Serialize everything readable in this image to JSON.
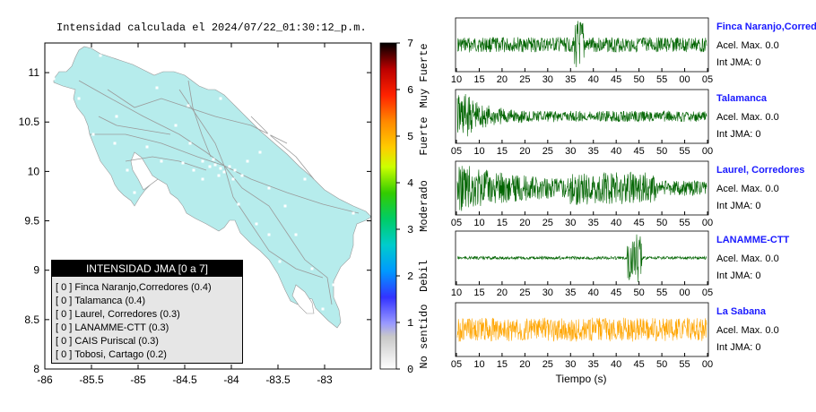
{
  "map": {
    "title": "Intensidad calculada el 2024/07/22_01:30:12_p.m.",
    "x_ticks": [
      "-86",
      "-85.5",
      "-85",
      "-84.5",
      "-84",
      "-83.5",
      "-83"
    ],
    "y_ticks": [
      "11",
      "10.5",
      "10",
      "9.5",
      "9",
      "8.5",
      "8"
    ],
    "xlim": [
      -86,
      -82.5
    ],
    "ylim": [
      8,
      11.3
    ],
    "land_color": "#b6ecec"
  },
  "legend": {
    "title": "INTENSIDAD JMA [0 a 7]",
    "items": [
      "[ 0 ] Finca Naranjo,Corredores (0.4)",
      "[ 0 ] Talamanca (0.4)",
      "[ 0 ] Laurel, Corredores (0.3)",
      "[ 0 ] LANAMME-CTT (0.3)",
      "[ 0 ] CAIS Puriscal (0.3)",
      "[ 0 ] Tobosi, Cartago (0.2)"
    ]
  },
  "colorbar": {
    "ticks": [
      "0",
      "1",
      "2",
      "3",
      "4",
      "5",
      "6",
      "7"
    ],
    "category_labels": [
      "No sentido",
      "Debil",
      "Moderado",
      "Fuerte",
      "Muy Fuerte"
    ]
  },
  "chart_data": [
    {
      "type": "map",
      "title": "Intensidad calculada el 2024/07/22_01:30:12_p.m.",
      "x_range": [
        -86,
        -82.5
      ],
      "y_range": [
        8,
        11.3
      ],
      "stations": [
        {
          "name": "Finca Naranjo,Corredores",
          "jma": 0,
          "value": 0.4
        },
        {
          "name": "Talamanca",
          "jma": 0,
          "value": 0.4
        },
        {
          "name": "Laurel, Corredores",
          "jma": 0,
          "value": 0.3
        },
        {
          "name": "LANAMME-CTT",
          "jma": 0,
          "value": 0.3
        },
        {
          "name": "CAIS Puriscal",
          "jma": 0,
          "value": 0.3
        },
        {
          "name": "Tobosi, Cartago",
          "jma": 0,
          "value": 0.2
        }
      ]
    },
    {
      "type": "line",
      "xlabel": "Tiempo (s)",
      "panels": [
        {
          "name": "Finca Naranjo,Corredor",
          "acel": "Acel. Max. 0.0",
          "int": "Int JMA: 0",
          "color": "#006400",
          "ticks": [
            "10",
            "15",
            "20",
            "25",
            "30",
            "35",
            "40",
            "45",
            "50",
            "55",
            "00",
            "05"
          ]
        },
        {
          "name": "Talamanca",
          "acel": "Acel. Max. 0.0",
          "int": "Int JMA: 0",
          "color": "#006400",
          "ticks": [
            "05",
            "10",
            "15",
            "20",
            "25",
            "30",
            "35",
            "40",
            "45",
            "50",
            "55",
            "00"
          ]
        },
        {
          "name": "Laurel, Corredores",
          "acel": "Acel. Max. 0.0",
          "int": "Int JMA: 0",
          "color": "#006400",
          "ticks": [
            "05",
            "10",
            "15",
            "20",
            "25",
            "30",
            "35",
            "40",
            "45",
            "50",
            "55",
            "00"
          ]
        },
        {
          "name": "LANAMME-CTT",
          "acel": "Acel. Max. 0.0",
          "int": "Int JMA: 0",
          "color": "#006400",
          "ticks": [
            "10",
            "15",
            "20",
            "25",
            "30",
            "35",
            "40",
            "45",
            "50",
            "55",
            "00",
            "05"
          ]
        },
        {
          "name": "La Sabana",
          "acel": "Acel. Max. 0.0",
          "int": "Int JMA: 0",
          "color": "#ffa500",
          "ticks": [
            "05",
            "10",
            "15",
            "20",
            "25",
            "30",
            "35",
            "40",
            "45",
            "50",
            "55",
            "00"
          ]
        }
      ]
    }
  ]
}
